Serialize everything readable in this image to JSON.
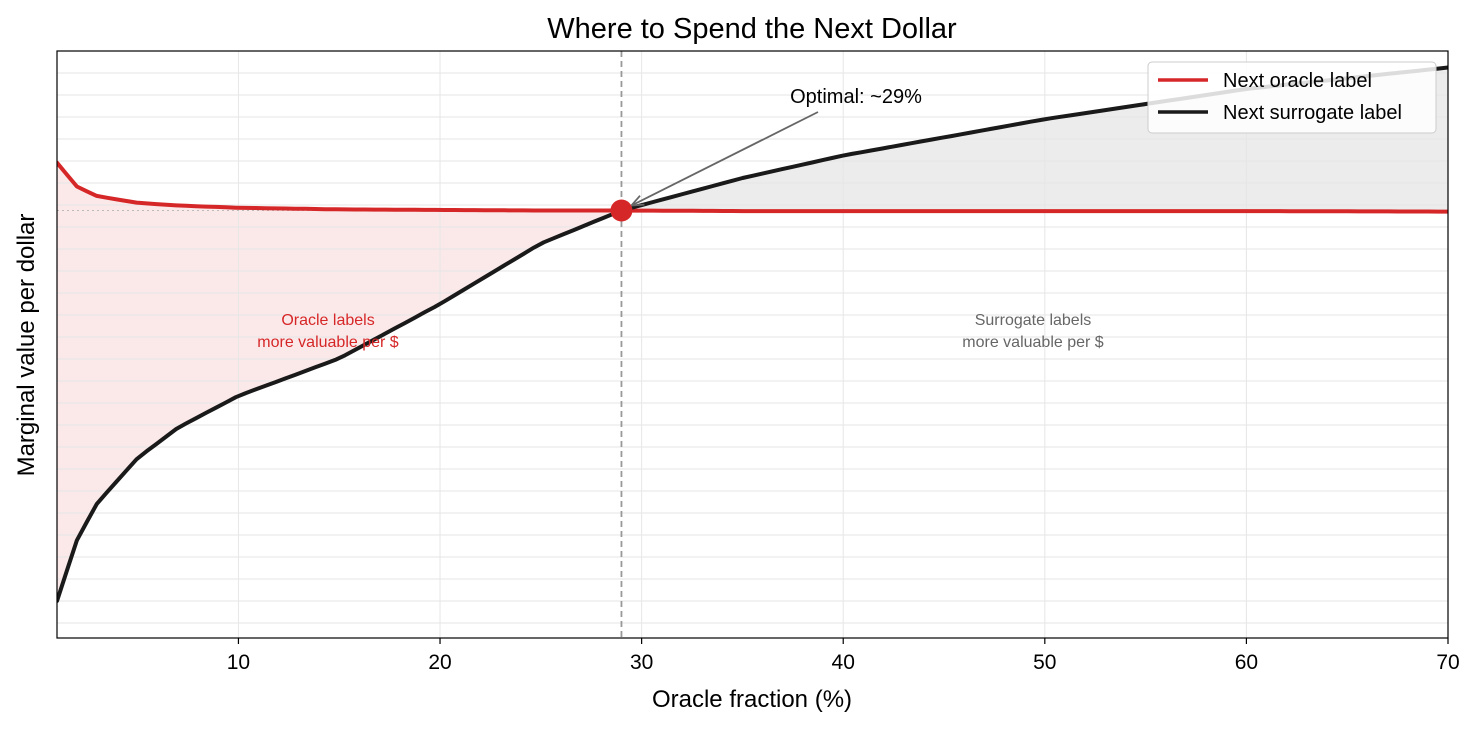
{
  "chart_data": {
    "type": "line",
    "title": "Where to Spend the Next Dollar",
    "xlabel": "Oracle fraction (%)",
    "ylabel": "Marginal value per dollar",
    "xlim": [
      1,
      70
    ],
    "ylim": [
      0,
      1
    ],
    "x_ticks": [
      10,
      20,
      30,
      40,
      50,
      60,
      70
    ],
    "y_ticks_shown": false,
    "grid": true,
    "legend_position": "top-right",
    "series": [
      {
        "name": "Next oracle label",
        "color": "#d62728",
        "x": [
          1,
          2,
          3,
          5,
          7,
          10,
          15,
          20,
          25,
          29,
          35,
          40,
          50,
          60,
          70
        ],
        "y": [
          0.837,
          0.793,
          0.776,
          0.764,
          0.759,
          0.755,
          0.752,
          0.751,
          0.75,
          0.75,
          0.749,
          0.749,
          0.749,
          0.749,
          0.748
        ]
      },
      {
        "name": "Next surrogate label",
        "color": "#1a1a1a",
        "x": [
          1,
          2,
          3,
          5,
          7,
          10,
          15,
          20,
          25,
          29,
          35,
          40,
          50,
          60,
          70
        ],
        "y": [
          0.04,
          0.152,
          0.218,
          0.3,
          0.355,
          0.413,
          0.481,
          0.58,
          0.69,
          0.75,
          0.809,
          0.85,
          0.916,
          0.971,
          1.01
        ]
      }
    ],
    "optimal": {
      "x": 29,
      "y": 0.75,
      "color": "#d62728"
    },
    "annotations": {
      "optimal": "Optimal: ~29%",
      "oracle_region": [
        "Oracle labels",
        "more valuable per $"
      ],
      "surrogate_region": [
        "Surrogate labels",
        "more valuable per $"
      ]
    },
    "colors": {
      "oracle_fill": "#fbe9e9",
      "surrogate_fill": "#ececec",
      "grid": "#e6e6e6",
      "vline": "#999999",
      "oracle_text": "#d62728",
      "surrogate_text": "#666666"
    }
  }
}
